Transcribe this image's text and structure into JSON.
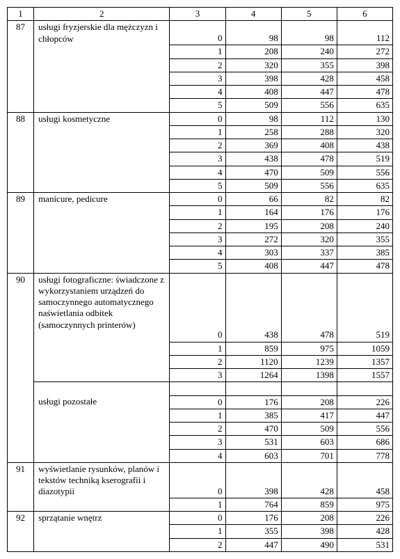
{
  "columns": [
    "1",
    "2",
    "3",
    "4",
    "5",
    "6"
  ],
  "groups": [
    {
      "id": "87",
      "services": [
        {
          "label": "usługi fryzjerskie dla mężczyzn i chłopców",
          "rows": [
            {
              "k": "0",
              "v": [
                "98",
                "98",
                "112"
              ]
            },
            {
              "k": "1",
              "v": [
                "208",
                "240",
                "272"
              ]
            },
            {
              "k": "2",
              "v": [
                "320",
                "355",
                "398"
              ]
            },
            {
              "k": "3",
              "v": [
                "398",
                "428",
                "458"
              ]
            },
            {
              "k": "4",
              "v": [
                "408",
                "447",
                "478"
              ]
            },
            {
              "k": "5",
              "v": [
                "509",
                "556",
                "635"
              ]
            }
          ]
        }
      ]
    },
    {
      "id": "88",
      "services": [
        {
          "label": "usługi kosmetyczne",
          "rows": [
            {
              "k": "0",
              "v": [
                "98",
                "112",
                "130"
              ]
            },
            {
              "k": "1",
              "v": [
                "258",
                "288",
                "320"
              ]
            },
            {
              "k": "2",
              "v": [
                "369",
                "408",
                "438"
              ]
            },
            {
              "k": "3",
              "v": [
                "438",
                "478",
                "519"
              ]
            },
            {
              "k": "4",
              "v": [
                "470",
                "509",
                "556"
              ]
            },
            {
              "k": "5",
              "v": [
                "509",
                "556",
                "635"
              ]
            }
          ]
        }
      ]
    },
    {
      "id": "89",
      "services": [
        {
          "label": "manicure, pedicure",
          "rows": [
            {
              "k": "0",
              "v": [
                "66",
                "82",
                "82"
              ]
            },
            {
              "k": "1",
              "v": [
                "164",
                "176",
                "176"
              ]
            },
            {
              "k": "2",
              "v": [
                "195",
                "208",
                "240"
              ]
            },
            {
              "k": "3",
              "v": [
                "272",
                "320",
                "355"
              ]
            },
            {
              "k": "4",
              "v": [
                "303",
                "337",
                "385"
              ]
            },
            {
              "k": "5",
              "v": [
                "408",
                "447",
                "478"
              ]
            }
          ]
        }
      ]
    },
    {
      "id": "90",
      "services": [
        {
          "label": "usługi fotograficzne: świadczone z wykorzystaniem urządzeń do samoczynnego automatycznego naświetlania odbitek (samoczynnych printerów)",
          "tall_first": true,
          "rows": [
            {
              "k": "0",
              "v": [
                "438",
                "478",
                "519"
              ]
            },
            {
              "k": "1",
              "v": [
                "859",
                "975",
                "1059"
              ]
            },
            {
              "k": "2",
              "v": [
                "1120",
                "1239",
                "1357"
              ]
            },
            {
              "k": "3",
              "v": [
                "1264",
                "1398",
                "1557"
              ]
            }
          ]
        },
        {
          "label": "usługi pozostałe",
          "gap_before": true,
          "rows": [
            {
              "k": "0",
              "v": [
                "176",
                "208",
                "226"
              ]
            },
            {
              "k": "1",
              "v": [
                "385",
                "417",
                "447"
              ]
            },
            {
              "k": "2",
              "v": [
                "470",
                "509",
                "556"
              ]
            },
            {
              "k": "3",
              "v": [
                "531",
                "603",
                "686"
              ]
            },
            {
              "k": "4",
              "v": [
                "603",
                "701",
                "778"
              ]
            }
          ]
        }
      ]
    },
    {
      "id": "91",
      "services": [
        {
          "label": "wyświetlanie rysunków, planów i tekstów techniką kserografii i diazotypii",
          "tall_first": true,
          "rows": [
            {
              "k": "0",
              "v": [
                "398",
                "428",
                "458"
              ]
            },
            {
              "k": "1",
              "v": [
                "764",
                "859",
                "975"
              ]
            }
          ]
        }
      ]
    },
    {
      "id": "92",
      "services": [
        {
          "label": "sprzątanie wnętrz",
          "rows": [
            {
              "k": "0",
              "v": [
                "176",
                "208",
                "226"
              ]
            },
            {
              "k": "1",
              "v": [
                "355",
                "398",
                "428"
              ]
            },
            {
              "k": "2",
              "v": [
                "447",
                "490",
                "531"
              ]
            }
          ]
        }
      ]
    }
  ]
}
